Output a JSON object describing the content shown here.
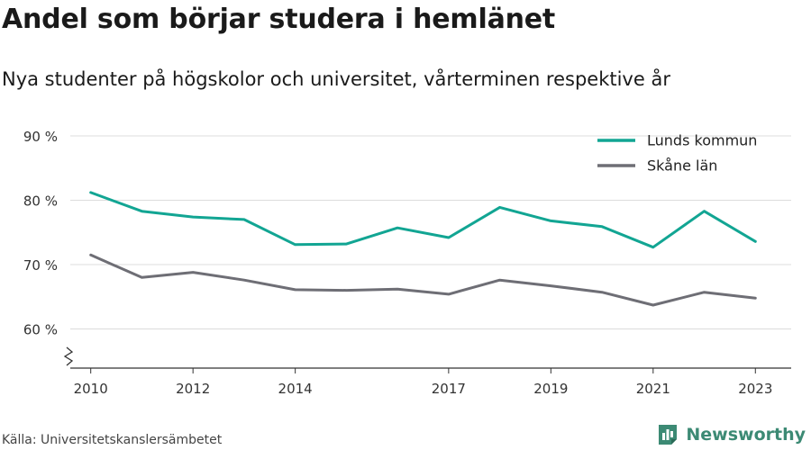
{
  "header": {
    "title": "Andel som börjar studera i hemlänet",
    "subtitle": "Nya studenter på högskolor och universitet, vårterminen respektive år"
  },
  "footer": {
    "source": "Källa: Universitetskanslersämbetet",
    "brand": "Newsworthy",
    "brand_icon": "bar-chart-document-icon",
    "brand_color": "#3c8a74"
  },
  "chart_data": {
    "type": "line",
    "title": "Andel som börjar studera i hemlänet",
    "subtitle": "Nya studenter på högskolor och universitet, vårterminen respektive år",
    "x": [
      2010,
      2011,
      2012,
      2013,
      2014,
      2015,
      2016,
      2017,
      2018,
      2019,
      2020,
      2021,
      2022,
      2023
    ],
    "x_tick_labels": [
      "2010",
      "2012",
      "2014",
      "2017",
      "2019",
      "2021",
      "2023"
    ],
    "y_tick_values": [
      60,
      70,
      80,
      90
    ],
    "y_tick_labels": [
      "60 %",
      "70 %",
      "80 %",
      "90 %"
    ],
    "ylim": [
      54,
      90
    ],
    "y_axis_break": true,
    "grid": true,
    "legend_position": "top-right",
    "series": [
      {
        "name": "Lunds kommun",
        "color": "#12a593",
        "values": [
          81.2,
          78.3,
          77.4,
          77.0,
          73.1,
          73.2,
          75.7,
          74.2,
          78.9,
          76.8,
          75.9,
          72.7,
          78.3,
          73.6
        ]
      },
      {
        "name": "Skåne län",
        "color": "#6e6e75",
        "values": [
          71.5,
          68.0,
          68.8,
          67.6,
          66.1,
          66.0,
          66.2,
          65.4,
          67.6,
          66.7,
          65.7,
          63.7,
          65.7,
          64.8
        ]
      }
    ]
  }
}
